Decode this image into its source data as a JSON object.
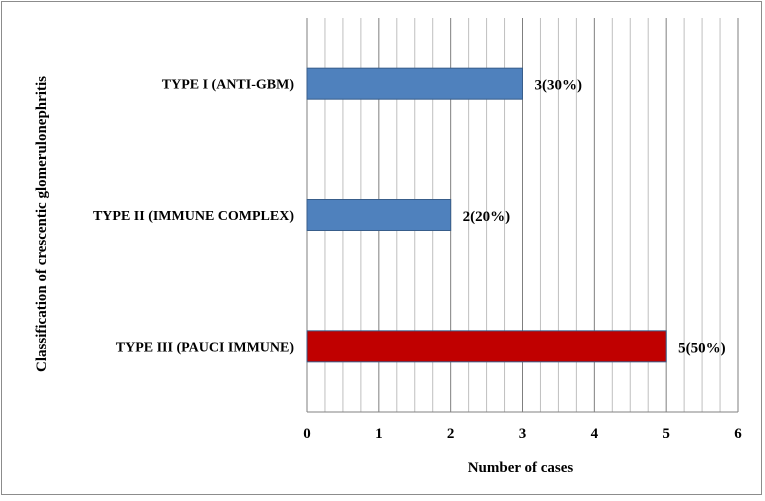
{
  "chart_data": {
    "type": "bar",
    "orientation": "horizontal",
    "title": "",
    "xlabel": "Number of cases",
    "ylabel": "Classification of crescentic glomerulonephritis",
    "categories": [
      "TYPE I (ANTI-GBM)",
      "TYPE II (IMMUNE COMPLEX)",
      "TYPE III (PAUCI IMMUNE)"
    ],
    "values": [
      3,
      2,
      5
    ],
    "data_labels": [
      "3(30%)",
      "2(20%)",
      "5(50%)"
    ],
    "bar_colors": [
      "#4f81bd",
      "#4f81bd",
      "#c00000"
    ],
    "xlim": [
      0,
      6
    ],
    "xticks": [
      "0",
      "1",
      "2",
      "3",
      "4",
      "5",
      "6"
    ],
    "grid": true,
    "minor_gridlines_per_unit": 4,
    "legend": "none"
  }
}
